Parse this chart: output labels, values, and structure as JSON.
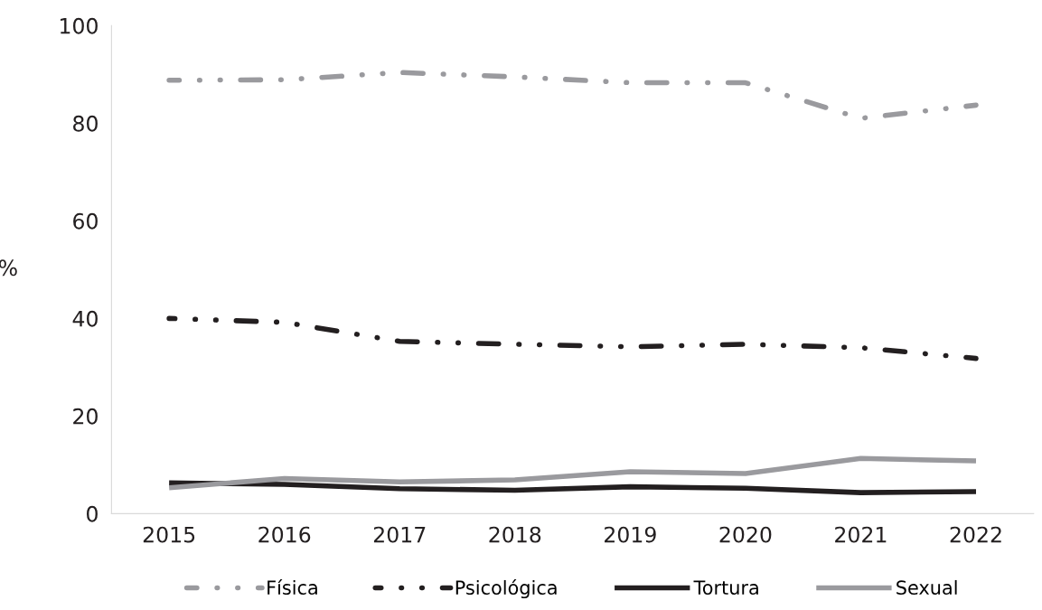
{
  "chart_data": {
    "type": "line",
    "ylabel": "%",
    "categories": [
      "2015",
      "2016",
      "2017",
      "2018",
      "2019",
      "2020",
      "2021",
      "2022"
    ],
    "ylim": [
      0,
      100
    ],
    "yticks": [
      0,
      20,
      40,
      60,
      80,
      100
    ],
    "grid": false,
    "legend": "bottom",
    "marker": "none",
    "series": [
      {
        "name": "Física",
        "color": "#9a9a9e",
        "line_style": "dashdot",
        "values": [
          88.8,
          88.9,
          90.4,
          89.5,
          88.3,
          88.3,
          81.0,
          83.7
        ]
      },
      {
        "name": "Psicológica",
        "color": "#231f20",
        "line_style": "dashdot",
        "values": [
          40.0,
          39.2,
          35.3,
          34.7,
          34.2,
          34.7,
          34.0,
          31.8
        ]
      },
      {
        "name": "Tortura",
        "color": "#231f20",
        "line_style": "solid",
        "values": [
          6.3,
          6.0,
          5.1,
          4.8,
          5.5,
          5.2,
          4.3,
          4.5
        ]
      },
      {
        "name": "Sexual",
        "color": "#9a9a9e",
        "line_style": "solid",
        "values": [
          5.3,
          7.2,
          6.5,
          6.9,
          8.6,
          8.2,
          11.3,
          10.8
        ]
      }
    ]
  }
}
